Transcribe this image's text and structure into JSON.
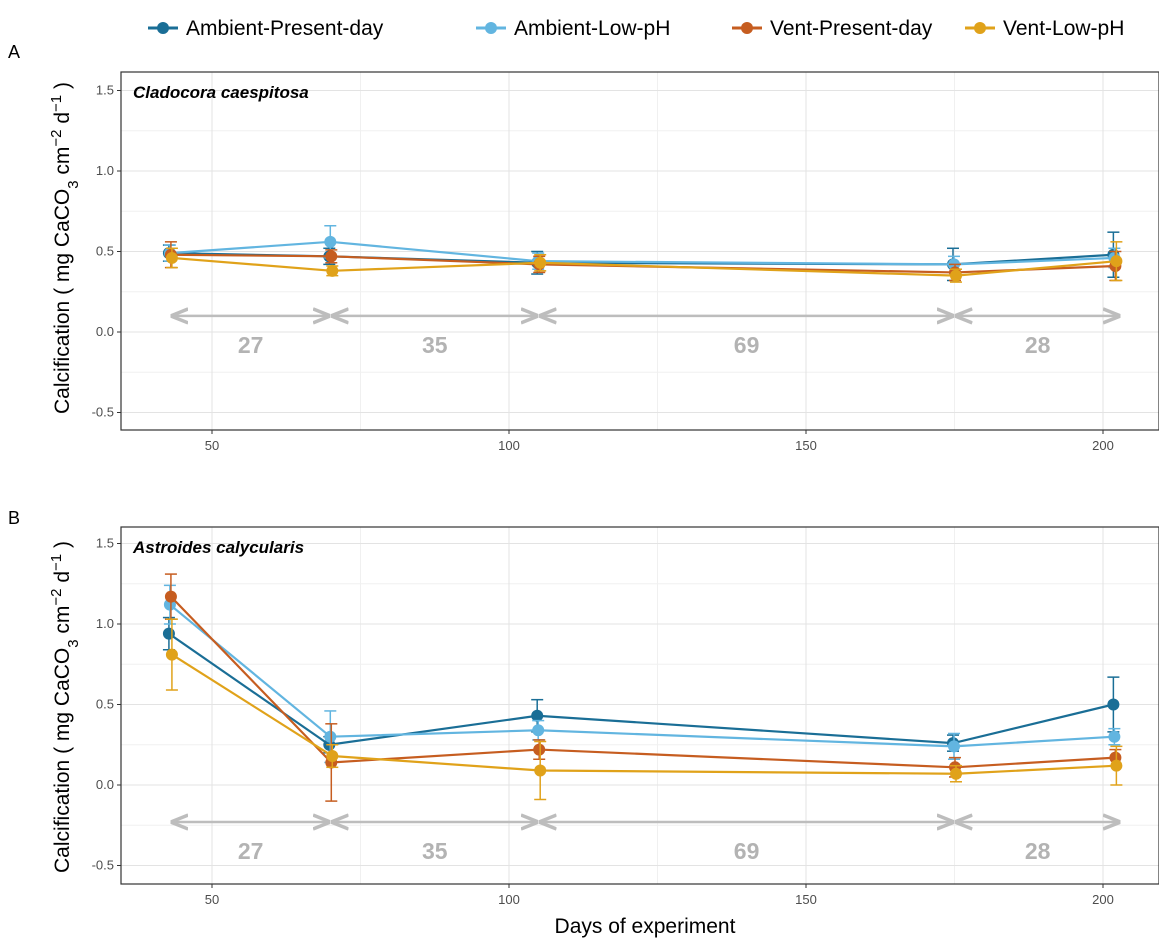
{
  "legend": {
    "items": [
      {
        "label": "Ambient-Present-day",
        "color": "#1a6e96"
      },
      {
        "label": "Ambient-Low-pH",
        "color": "#62b5e0"
      },
      {
        "label": "Vent-Present-day",
        "color": "#c65d20"
      },
      {
        "label": "Vent-Low-pH",
        "color": "#e0a21a"
      }
    ]
  },
  "axes": {
    "xlabel": "Days of experiment",
    "ylabel_main": "Calcification ( mg CaCO",
    "ylabel_sub3": "3",
    "ylabel_cm": " cm",
    "ylabel_sup_m2": "−2",
    "ylabel_d": " d",
    "ylabel_sup_m1": "−1",
    "ylabel_close": " )"
  },
  "chart_data": [
    {
      "type": "line",
      "panel": "A",
      "title": "Cladocora caespitosa",
      "xlabel": "Days of experiment",
      "x_ticks": [
        50,
        100,
        150,
        200
      ],
      "y_ticks": [
        -0.5,
        0.0,
        0.5,
        1.0,
        1.5
      ],
      "y_tick_labels": [
        "-0.5",
        "0.0",
        "0.5",
        "1.0",
        "1.5"
      ],
      "xlim": [
        35,
        210
      ],
      "ylim": [
        -0.6,
        1.6
      ],
      "x": [
        43,
        70,
        105,
        175,
        202
      ],
      "series": [
        {
          "name": "Ambient-Present-day",
          "color": "#1a6e96",
          "values": [
            0.49,
            0.47,
            0.43,
            0.42,
            0.48
          ],
          "err": [
            0.05,
            0.05,
            0.07,
            0.1,
            0.14
          ]
        },
        {
          "name": "Ambient-Low-pH",
          "color": "#62b5e0",
          "values": [
            0.49,
            0.56,
            0.44,
            0.42,
            0.46
          ],
          "err": [
            0.05,
            0.1,
            0.05,
            0.05,
            0.06
          ]
        },
        {
          "name": "Vent-Present-day",
          "color": "#c65d20",
          "values": [
            0.48,
            0.47,
            0.42,
            0.37,
            0.41
          ],
          "err": [
            0.08,
            0.04,
            0.05,
            0.05,
            0.09
          ]
        },
        {
          "name": "Vent-Low-pH",
          "color": "#e0a21a",
          "values": [
            0.46,
            0.38,
            0.43,
            0.35,
            0.44
          ],
          "err": [
            0.06,
            0.03,
            0.05,
            0.04,
            0.12
          ]
        }
      ],
      "intervals": [
        {
          "from": 43,
          "to": 70,
          "label": "27"
        },
        {
          "from": 70,
          "to": 105,
          "label": "35"
        },
        {
          "from": 105,
          "to": 175,
          "label": "69"
        },
        {
          "from": 175,
          "to": 203,
          "label": "28"
        }
      ],
      "interval_y": 0.1,
      "grid": true
    },
    {
      "type": "line",
      "panel": "B",
      "title": "Astroides calycularis",
      "xlabel": "Days of experiment",
      "x_ticks": [
        50,
        100,
        150,
        200
      ],
      "y_ticks": [
        -0.5,
        0.0,
        0.5,
        1.0,
        1.5
      ],
      "y_tick_labels": [
        "-0.5",
        "0.0",
        "0.5",
        "1.0",
        "1.5"
      ],
      "xlim": [
        35,
        210
      ],
      "ylim": [
        -0.6,
        1.6
      ],
      "x": [
        43,
        70,
        105,
        175,
        202
      ],
      "series": [
        {
          "name": "Ambient-Present-day",
          "color": "#1a6e96",
          "values": [
            0.94,
            0.25,
            0.43,
            0.26,
            0.5
          ],
          "err": [
            0.1,
            0.05,
            0.1,
            0.05,
            0.17
          ]
        },
        {
          "name": "Ambient-Low-pH",
          "color": "#62b5e0",
          "values": [
            1.12,
            0.3,
            0.34,
            0.24,
            0.3
          ],
          "err": [
            0.12,
            0.16,
            0.06,
            0.08,
            0.05
          ]
        },
        {
          "name": "Vent-Present-day",
          "color": "#c65d20",
          "values": [
            1.17,
            0.14,
            0.22,
            0.11,
            0.17
          ],
          "err": [
            0.14,
            0.24,
            0.06,
            0.06,
            0.05
          ]
        },
        {
          "name": "Vent-Low-pH",
          "color": "#e0a21a",
          "values": [
            0.81,
            0.18,
            0.09,
            0.07,
            0.12
          ],
          "err": [
            0.22,
            0.07,
            0.18,
            0.05,
            0.12
          ]
        }
      ],
      "intervals": [
        {
          "from": 43,
          "to": 70,
          "label": "27"
        },
        {
          "from": 70,
          "to": 105,
          "label": "35"
        },
        {
          "from": 105,
          "to": 175,
          "label": "69"
        },
        {
          "from": 175,
          "to": 203,
          "label": "28"
        }
      ],
      "interval_y": -0.23,
      "grid": true
    }
  ]
}
